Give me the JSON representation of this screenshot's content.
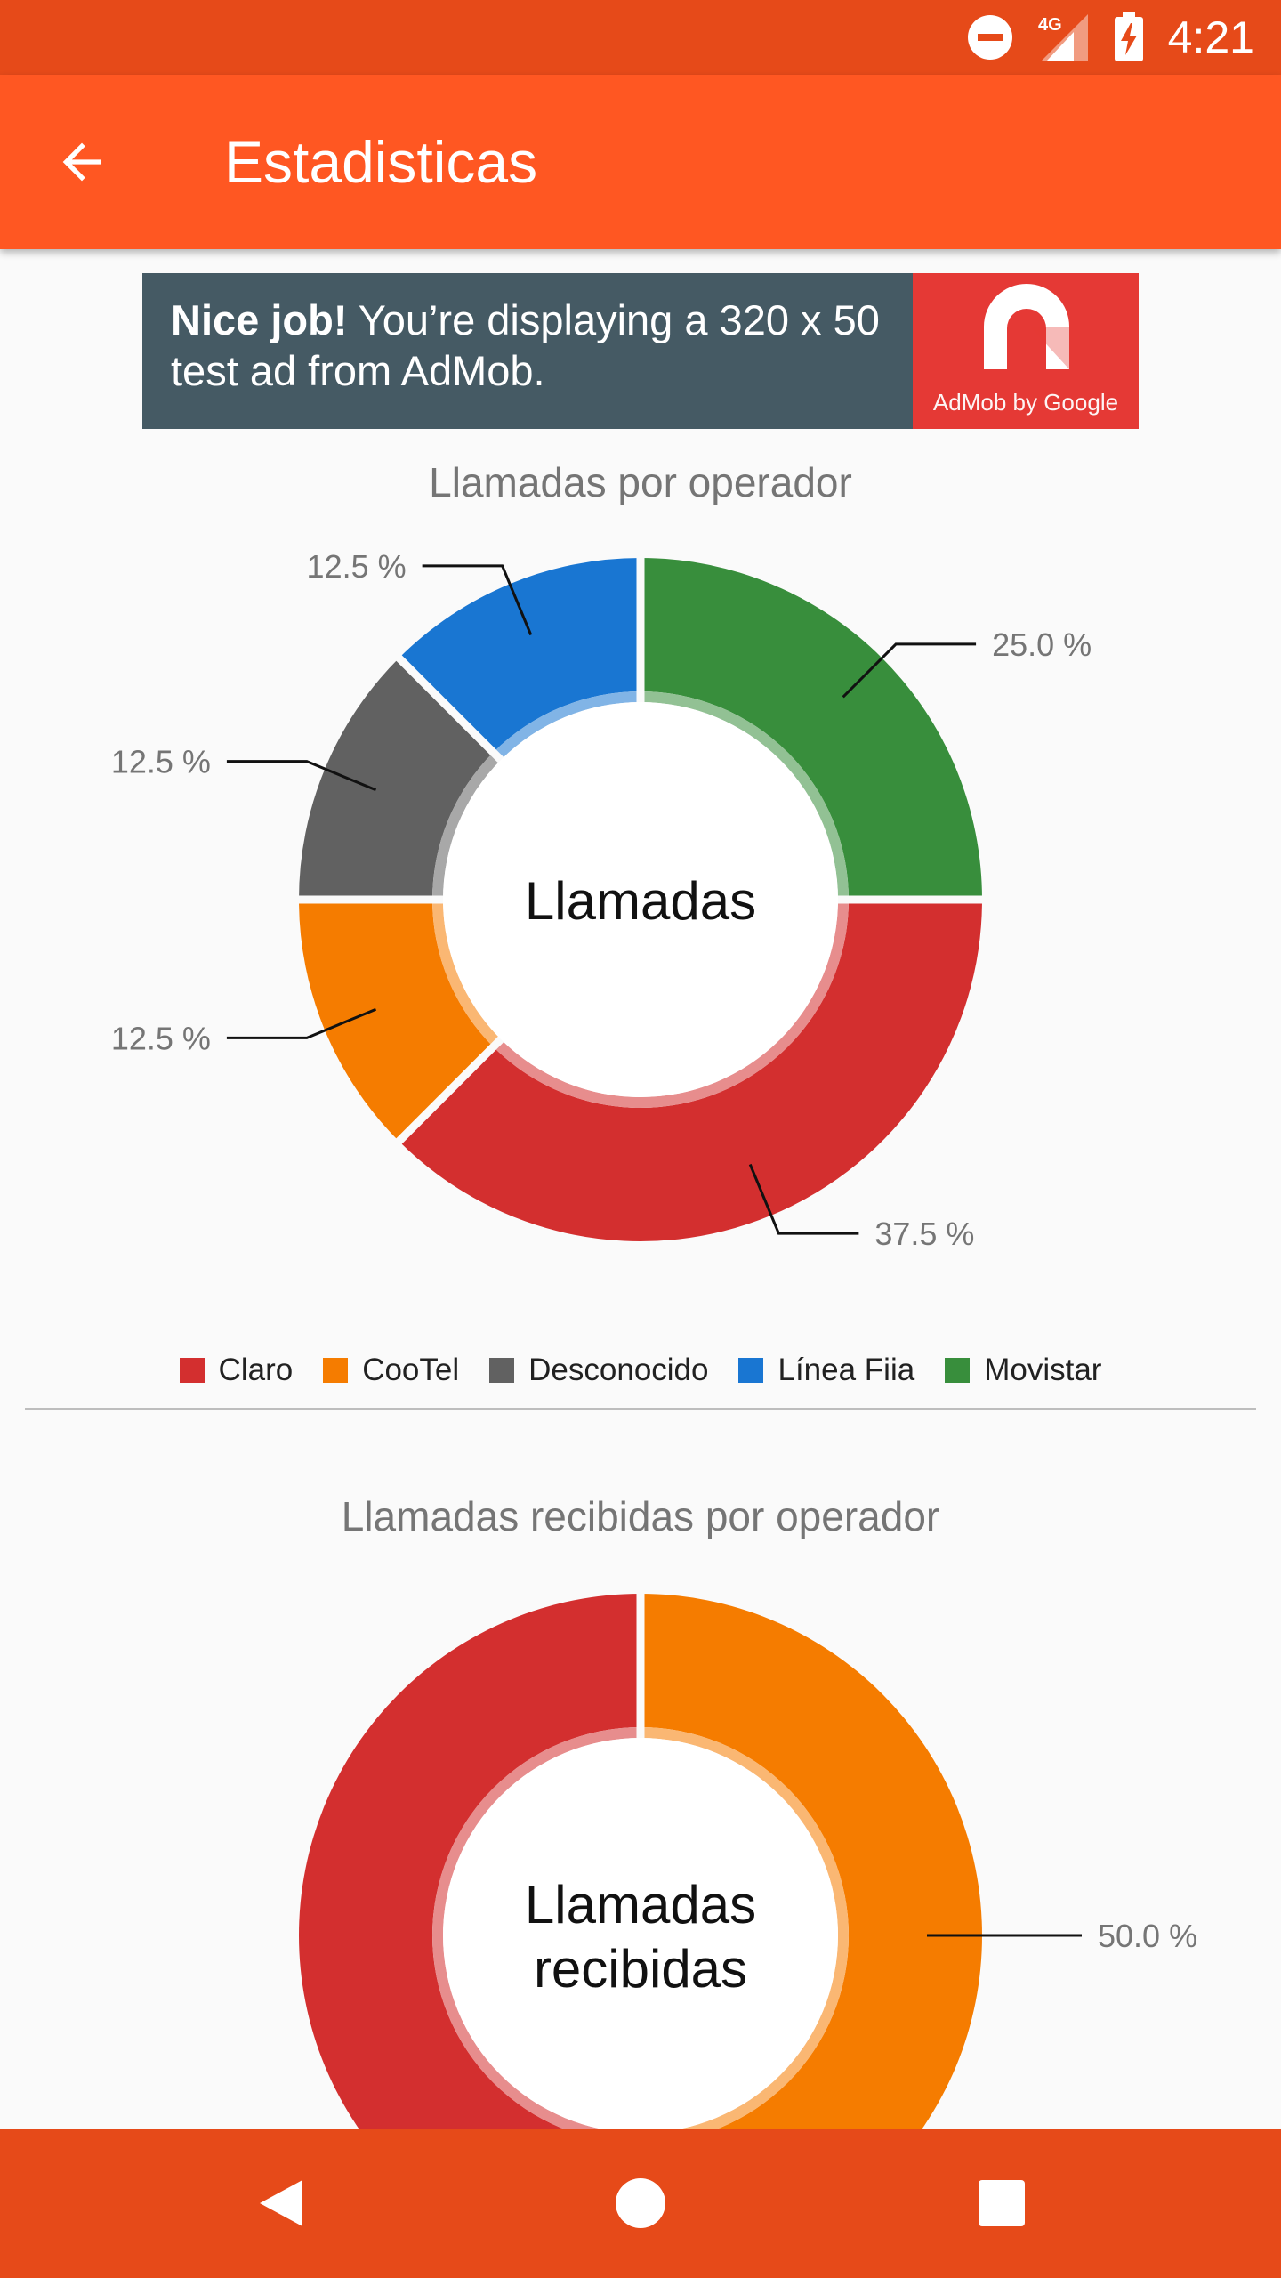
{
  "status_bar": {
    "time": "4:21",
    "network": "4G",
    "icons": [
      "do-not-disturb-icon",
      "signal-icon",
      "battery-charging-icon"
    ]
  },
  "app_bar": {
    "title": "Estadisticas",
    "back_icon": "arrow-back-icon"
  },
  "ad": {
    "bold": "Nice job!",
    "text": " You’re displaying a 320 x 50 test ad from AdMob.",
    "logo_caption": "AdMob by Google"
  },
  "charts": [
    {
      "title": "Llamadas por operador",
      "center_label": "Llamadas"
    },
    {
      "title": "Llamadas recibidas por operador",
      "center_label_line1": "Llamadas",
      "center_label_line2": "recibidas"
    }
  ],
  "legend": [
    {
      "label": "Claro",
      "color": "#d32f2f"
    },
    {
      "label": "CooTel",
      "color": "#f57c00"
    },
    {
      "label": "Desconocido",
      "color": "#616161"
    },
    {
      "label": "Línea Fiia",
      "color": "#1976d2"
    },
    {
      "label": "Movistar",
      "color": "#388e3c"
    }
  ],
  "chart_data": [
    {
      "type": "pie",
      "title": "Llamadas por operador",
      "categories": [
        "Movistar",
        "Claro",
        "CooTel",
        "Desconocido",
        "Línea Fiia"
      ],
      "values": [
        25.0,
        37.5,
        12.5,
        12.5,
        12.5
      ],
      "value_labels": [
        "25.0 %",
        "37.5 %",
        "12.5 %",
        "12.5 %",
        "12.5 %"
      ],
      "colors": [
        "#388e3c",
        "#d32f2f",
        "#f57c00",
        "#616161",
        "#1976d2"
      ],
      "center_text": "Llamadas"
    },
    {
      "type": "pie",
      "title": "Llamadas recibidas por operador",
      "categories": [
        "CooTel",
        "Claro"
      ],
      "values": [
        50.0,
        50.0
      ],
      "value_labels": [
        "50.0 %",
        ""
      ],
      "colors": [
        "#f57c00",
        "#d32f2f"
      ],
      "center_text": "Llamadas recibidas"
    }
  ],
  "nav_bar": {
    "icons": [
      "back-triangle-icon",
      "home-circle-icon",
      "recents-square-icon"
    ]
  }
}
